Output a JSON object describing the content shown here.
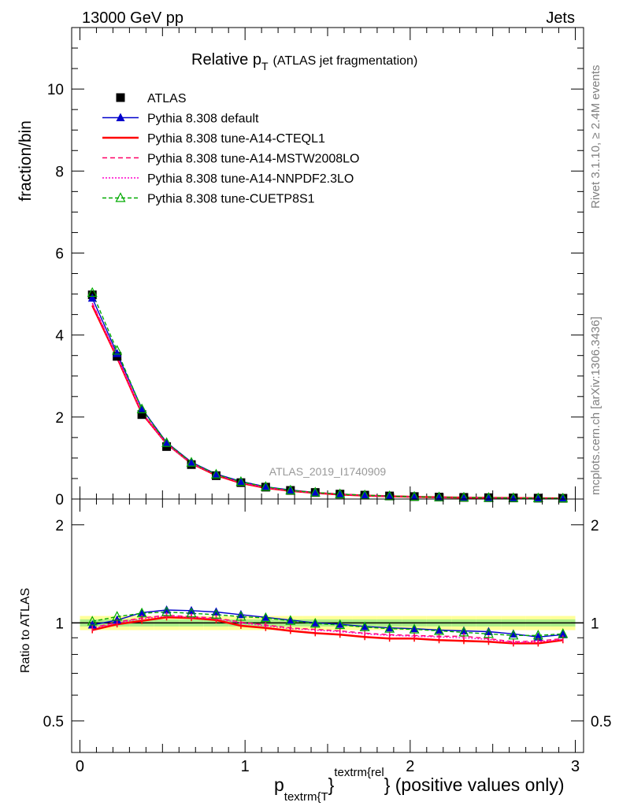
{
  "header": {
    "left": "13000 GeV pp",
    "right": "Jets"
  },
  "chart_data": [
    {
      "type": "line",
      "panel": "main",
      "title": "Relative p",
      "title_sub": "T",
      "title_extra": "(ATLAS jet fragmentation)",
      "ylabel": "fraction/bin",
      "watermark": "ATLAS_2019_I1740909",
      "xlim": [
        -0.05,
        3.05
      ],
      "ylim": [
        0,
        11.5
      ],
      "yticks": [
        0,
        2,
        4,
        6,
        8,
        10
      ],
      "x": [
        0.075,
        0.225,
        0.375,
        0.525,
        0.675,
        0.825,
        0.975,
        1.125,
        1.275,
        1.425,
        1.575,
        1.725,
        1.875,
        2.025,
        2.175,
        2.325,
        2.475,
        2.625,
        2.775,
        2.925
      ],
      "legend_position": "top-left",
      "series": [
        {
          "name": "ATLAS",
          "color": "#000000",
          "dash": "none",
          "marker": "square",
          "values": [
            4.98,
            3.48,
            2.06,
            1.28,
            0.84,
            0.57,
            0.4,
            0.29,
            0.21,
            0.16,
            0.12,
            0.095,
            0.075,
            0.06,
            0.048,
            0.04,
            0.033,
            0.027,
            0.022,
            0.018
          ]
        },
        {
          "name": "Pythia 8.308 default",
          "color": "#0000cc",
          "dash": "none",
          "marker": "triangle-filled",
          "values": [
            4.9,
            3.55,
            2.21,
            1.38,
            0.9,
            0.61,
            0.43,
            0.3,
            0.22,
            0.16,
            0.12,
            0.093,
            0.073,
            0.058,
            0.046,
            0.038,
            0.031,
            0.025,
            0.02,
            0.017
          ]
        },
        {
          "name": "Pythia 8.308 tune-A14-CTEQL1",
          "color": "#ff0000",
          "dash": "none",
          "marker": "none",
          "width": 2.5,
          "values": [
            4.72,
            3.45,
            2.09,
            1.35,
            0.87,
            0.58,
            0.39,
            0.27,
            0.2,
            0.15,
            0.11,
            0.085,
            0.067,
            0.054,
            0.043,
            0.035,
            0.028,
            0.023,
            0.019,
            0.016
          ]
        },
        {
          "name": "Pythia 8.308 tune-A14-MSTW2008LO",
          "color": "#ff0066",
          "dash": "6,4",
          "marker": "none",
          "values": [
            4.78,
            3.48,
            2.11,
            1.34,
            0.87,
            0.59,
            0.4,
            0.28,
            0.2,
            0.15,
            0.115,
            0.088,
            0.069,
            0.055,
            0.044,
            0.036,
            0.029,
            0.024,
            0.019,
            0.016
          ]
        },
        {
          "name": "Pythia 8.308 tune-A14-NNPDF2.3LO",
          "color": "#ff00cc",
          "dash": "2,2",
          "marker": "none",
          "values": [
            4.76,
            3.47,
            2.1,
            1.34,
            0.87,
            0.59,
            0.4,
            0.28,
            0.2,
            0.15,
            0.113,
            0.087,
            0.068,
            0.054,
            0.043,
            0.035,
            0.029,
            0.023,
            0.019,
            0.016
          ]
        },
        {
          "name": "Pythia 8.308 tune-CUETP8S1",
          "color": "#00aa00",
          "dash": "5,3",
          "marker": "triangle-open",
          "values": [
            5.03,
            3.62,
            2.19,
            1.37,
            0.89,
            0.6,
            0.42,
            0.3,
            0.21,
            0.16,
            0.12,
            0.093,
            0.072,
            0.057,
            0.045,
            0.037,
            0.03,
            0.025,
            0.02,
            0.017
          ]
        }
      ]
    },
    {
      "type": "line",
      "panel": "ratio",
      "ylabel": "Ratio to ATLAS",
      "xlabel_main": "p",
      "xlabel_sub": "textrm{T",
      "xlabel_sup": "textrm{rel",
      "xlabel_tail": "} (positive values only)",
      "xlim": [
        -0.05,
        3.05
      ],
      "ylim": [
        0.4,
        2.4
      ],
      "log_y": true,
      "yticks": [
        0.5,
        1,
        2
      ],
      "ytick_labels": [
        "0.5",
        "1",
        "2"
      ],
      "xticks": [
        0,
        1,
        2,
        3
      ],
      "xtick_labels": [
        "0",
        "1",
        "2",
        "3"
      ],
      "x": [
        0.075,
        0.225,
        0.375,
        0.525,
        0.675,
        0.825,
        0.975,
        1.125,
        1.275,
        1.425,
        1.575,
        1.725,
        1.875,
        2.025,
        2.175,
        2.325,
        2.475,
        2.625,
        2.775,
        2.925
      ],
      "band_inner": 0.025,
      "band_outer": 0.05,
      "band_inner_color": "#aaee88",
      "band_outer_color": "#ffff99",
      "series": [
        {
          "name": "Pythia 8.308 default",
          "color": "#0000cc",
          "dash": "none",
          "marker": "triangle-filled",
          "values": [
            0.985,
            1.02,
            1.075,
            1.095,
            1.09,
            1.08,
            1.06,
            1.04,
            1.02,
            1.0,
            0.99,
            0.975,
            0.965,
            0.96,
            0.95,
            0.945,
            0.94,
            0.925,
            0.905,
            0.92
          ]
        },
        {
          "name": "Pythia 8.308 tune-A14-CTEQL1",
          "color": "#ff0000",
          "dash": "none",
          "marker": "none",
          "width": 2.5,
          "values": [
            0.95,
            0.99,
            1.015,
            1.04,
            1.035,
            1.02,
            0.98,
            0.965,
            0.945,
            0.93,
            0.92,
            0.905,
            0.895,
            0.895,
            0.885,
            0.88,
            0.875,
            0.865,
            0.865,
            0.885
          ]
        },
        {
          "name": "Pythia 8.308 tune-A14-MSTW2008LO",
          "color": "#ff0066",
          "dash": "6,4",
          "marker": "none",
          "values": [
            0.965,
            1.005,
            1.035,
            1.055,
            1.045,
            1.035,
            1.005,
            0.985,
            0.965,
            0.955,
            0.945,
            0.93,
            0.92,
            0.915,
            0.91,
            0.91,
            0.895,
            0.875,
            0.88,
            0.895
          ]
        },
        {
          "name": "Pythia 8.308 tune-A14-NNPDF2.3LO",
          "color": "#ff00cc",
          "dash": "2,2",
          "marker": "none",
          "values": [
            0.96,
            1.0,
            1.03,
            1.05,
            1.04,
            1.03,
            1.0,
            0.98,
            0.96,
            0.95,
            0.94,
            0.925,
            0.915,
            0.91,
            0.905,
            0.9,
            0.89,
            0.87,
            0.875,
            0.89
          ]
        },
        {
          "name": "Pythia 8.308 tune-CUETP8S1",
          "color": "#00aa00",
          "dash": "5,3",
          "marker": "triangle-open",
          "values": [
            1.01,
            1.045,
            1.07,
            1.08,
            1.07,
            1.06,
            1.045,
            1.035,
            1.015,
            0.995,
            0.985,
            0.97,
            0.96,
            0.955,
            0.945,
            0.935,
            0.925,
            0.915,
            0.915,
            0.925
          ]
        }
      ]
    }
  ],
  "side_text": {
    "rivet": "Rivet 3.1.10, ≥ 2.4M events",
    "mcplots": "mcplots.cern.ch [arXiv:1306.3436]"
  }
}
